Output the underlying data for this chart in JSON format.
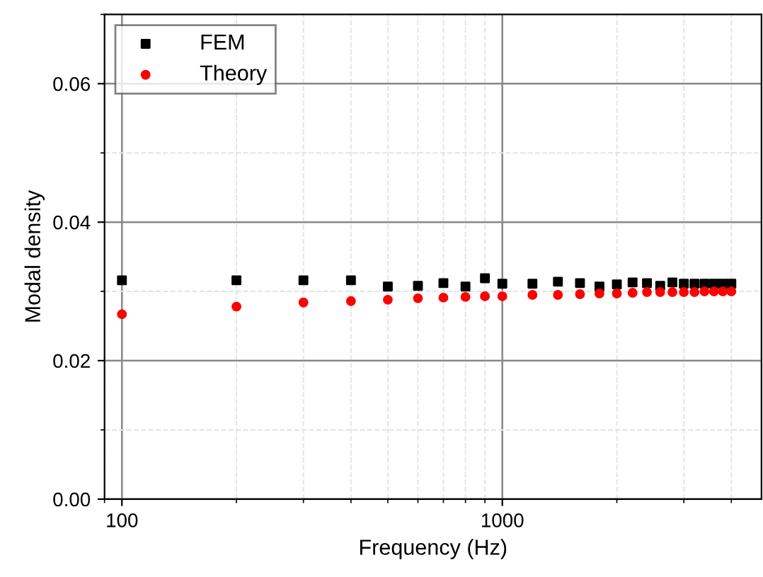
{
  "chart_data": {
    "type": "scatter",
    "xlabel": "Frequency (Hz)",
    "ylabel": "Modal density",
    "log": "x",
    "x": [
      100,
      200,
      300,
      400,
      500,
      600,
      700,
      800,
      900,
      1000,
      1200,
      1400,
      1600,
      1800,
      2000,
      2200,
      2400,
      2600,
      2800,
      3000,
      3200,
      3400,
      3600,
      3800,
      4000
    ],
    "series": [
      {
        "name": "FEM",
        "color": "#000000",
        "marker": "square",
        "values": [
          0.0316,
          0.0316,
          0.0316,
          0.0316,
          0.0307,
          0.0308,
          0.0312,
          0.0307,
          0.0319,
          0.0311,
          0.0311,
          0.0314,
          0.0312,
          0.0307,
          0.031,
          0.0313,
          0.0312,
          0.0308,
          0.0313,
          0.0311,
          0.0311,
          0.0311,
          0.0311,
          0.0311,
          0.0311
        ]
      },
      {
        "name": "Theory",
        "color": "#ff0000",
        "marker": "circle",
        "values": [
          0.0267,
          0.0278,
          0.0284,
          0.0286,
          0.0288,
          0.029,
          0.0291,
          0.0292,
          0.0293,
          0.0293,
          0.0295,
          0.0295,
          0.0296,
          0.0297,
          0.0297,
          0.0298,
          0.0299,
          0.0299,
          0.0299,
          0.0299,
          0.0299,
          0.03,
          0.03,
          0.03,
          0.03
        ]
      }
    ],
    "xlim": [
      90,
      4800
    ],
    "xticks": [
      100,
      1000
    ],
    "ylim": [
      0,
      0.07
    ],
    "yticks": [
      {
        "value": 0,
        "label": "0.00"
      },
      {
        "value": 0.02,
        "label": "0.02"
      },
      {
        "value": 0.04,
        "label": "0.04"
      },
      {
        "value": 0.06,
        "label": "0.06"
      }
    ],
    "grid": true,
    "legend": "top left"
  }
}
